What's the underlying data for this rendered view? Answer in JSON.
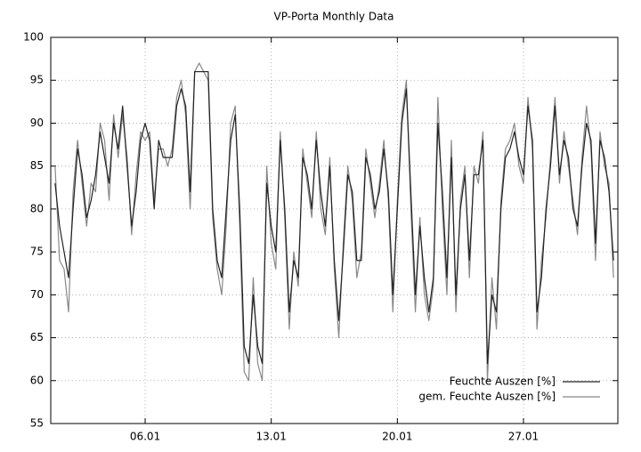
{
  "chart_data": {
    "type": "line",
    "title": "VP-Porta Monthly Data",
    "x": [
      1.0,
      1.25,
      1.5,
      1.75,
      2.0,
      2.25,
      2.5,
      2.75,
      3.0,
      3.25,
      3.5,
      3.75,
      4.0,
      4.25,
      4.5,
      4.75,
      5.0,
      5.25,
      5.5,
      5.75,
      6.0,
      6.25,
      6.5,
      6.75,
      7.0,
      7.25,
      7.5,
      7.75,
      8.0,
      8.25,
      8.5,
      8.75,
      9.0,
      9.25,
      9.5,
      9.75,
      10.0,
      10.25,
      10.5,
      10.75,
      11.0,
      11.25,
      11.5,
      11.75,
      12.0,
      12.25,
      12.5,
      12.75,
      13.0,
      13.25,
      13.5,
      13.75,
      14.0,
      14.25,
      14.5,
      14.75,
      15.0,
      15.25,
      15.5,
      15.75,
      16.0,
      16.25,
      16.5,
      16.75,
      17.0,
      17.25,
      17.5,
      17.75,
      18.0,
      18.25,
      18.5,
      18.75,
      19.0,
      19.25,
      19.5,
      19.75,
      20.0,
      20.25,
      20.5,
      20.75,
      21.0,
      21.25,
      21.5,
      21.75,
      22.0,
      22.25,
      22.5,
      22.75,
      23.0,
      23.25,
      23.5,
      23.75,
      24.0,
      24.25,
      24.5,
      24.75,
      25.0,
      25.25,
      25.5,
      25.75,
      26.0,
      26.25,
      26.5,
      26.75,
      27.0,
      27.25,
      27.5,
      27.75,
      28.0,
      28.25,
      28.5,
      28.75,
      29.0,
      29.25,
      29.5,
      29.75,
      30.0,
      30.25,
      30.5,
      30.75,
      31.0,
      31.25,
      31.5,
      31.75,
      32.0
    ],
    "series": [
      {
        "name": "Feuchte Auszen [%]",
        "color": "#222222",
        "values": [
          83,
          78,
          75,
          72,
          80,
          87,
          84,
          79,
          81,
          84,
          89,
          86,
          83,
          90,
          87,
          92,
          85,
          78,
          82,
          88,
          90,
          88,
          80,
          88,
          86,
          86,
          86,
          92,
          94,
          92,
          82,
          96,
          96,
          96,
          96,
          80,
          74,
          72,
          80,
          88,
          91,
          80,
          64,
          62,
          70,
          64,
          62,
          83,
          78,
          75,
          88,
          80,
          68,
          74,
          72,
          86,
          84,
          80,
          88,
          82,
          78,
          85,
          74,
          67,
          75,
          84,
          82,
          74,
          74,
          86,
          84,
          80,
          82,
          87,
          82,
          70,
          80,
          90,
          94,
          82,
          70,
          78,
          72,
          68,
          72,
          90,
          82,
          72,
          86,
          70,
          80,
          84,
          74,
          84,
          84,
          88,
          62,
          70,
          68,
          80,
          86,
          87,
          89,
          86,
          84,
          92,
          88,
          68,
          72,
          80,
          85,
          92,
          84,
          88,
          86,
          80,
          78,
          85,
          90,
          88,
          76,
          88,
          86,
          82,
          74
        ]
      },
      {
        "name": "gem. Feuchte Auszen [%]",
        "color": "#888888",
        "values": [
          85,
          74,
          73,
          68,
          82,
          88,
          83,
          78,
          83,
          82,
          90,
          88,
          81,
          91,
          86,
          91,
          86,
          77,
          84,
          89,
          88,
          89,
          81,
          87,
          87,
          85,
          87,
          93,
          95,
          91,
          80,
          96,
          97,
          96,
          95,
          79,
          73,
          70,
          78,
          90,
          92,
          78,
          61,
          60,
          72,
          62,
          60,
          85,
          76,
          73,
          89,
          79,
          66,
          75,
          71,
          87,
          83,
          79,
          89,
          80,
          77,
          86,
          73,
          65,
          76,
          85,
          81,
          72,
          75,
          87,
          83,
          79,
          83,
          88,
          81,
          68,
          81,
          91,
          95,
          80,
          68,
          79,
          70,
          67,
          71,
          93,
          80,
          70,
          88,
          68,
          81,
          85,
          72,
          85,
          83,
          89,
          60,
          72,
          66,
          81,
          87,
          88,
          90,
          85,
          83,
          93,
          87,
          66,
          74,
          79,
          86,
          93,
          83,
          89,
          85,
          81,
          77,
          86,
          92,
          87,
          74,
          89,
          85,
          83,
          72
        ]
      }
    ],
    "xlim": [
      0.76,
      32.24
    ],
    "xticks": [
      {
        "value": 6,
        "label": "06.01"
      },
      {
        "value": 13,
        "label": "13.01"
      },
      {
        "value": 20,
        "label": "20.01"
      },
      {
        "value": 27,
        "label": "27.01"
      }
    ],
    "ylim": [
      55,
      100
    ],
    "yticks": [
      55,
      60,
      65,
      70,
      75,
      80,
      85,
      90,
      95,
      100
    ],
    "grid": true,
    "legend": "bottom-right"
  }
}
